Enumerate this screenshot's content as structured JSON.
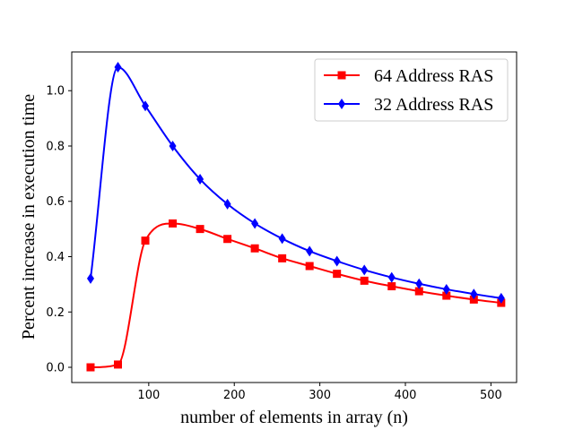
{
  "chart_data": {
    "type": "line",
    "xlabel": "number of elements in array (n)",
    "ylabel": "Percent increase in execution time",
    "xlim": [
      10,
      530
    ],
    "ylim": [
      -0.055,
      1.14
    ],
    "xticks": [
      100,
      200,
      300,
      400,
      500
    ],
    "yticks": [
      0.0,
      0.2,
      0.4,
      0.6,
      0.8,
      1.0
    ],
    "xtick_labels": [
      "100",
      "200",
      "300",
      "400",
      "500"
    ],
    "ytick_labels": [
      "0.0",
      "0.2",
      "0.4",
      "0.6",
      "0.8",
      "1.0"
    ],
    "grid": false,
    "legend_position": "top-right",
    "series": [
      {
        "name": "64 Address RAS",
        "color": "#ff0000",
        "marker": "square",
        "x": [
          32,
          64,
          96,
          128,
          160,
          192,
          224,
          256,
          288,
          320,
          352,
          384,
          416,
          448,
          480,
          512
        ],
        "y": [
          0.0,
          0.01,
          0.458,
          0.52,
          0.5,
          0.464,
          0.43,
          0.394,
          0.366,
          0.338,
          0.313,
          0.293,
          0.275,
          0.259,
          0.245,
          0.233
        ]
      },
      {
        "name": "32 Address RAS",
        "color": "#0000ff",
        "marker": "thin_diamond",
        "x": [
          32,
          64,
          96,
          128,
          160,
          192,
          224,
          256,
          288,
          320,
          352,
          384,
          416,
          448,
          480,
          512
        ],
        "y": [
          0.321,
          1.085,
          0.945,
          0.8,
          0.68,
          0.59,
          0.52,
          0.465,
          0.42,
          0.384,
          0.352,
          0.325,
          0.302,
          0.282,
          0.265,
          0.25
        ]
      }
    ]
  }
}
